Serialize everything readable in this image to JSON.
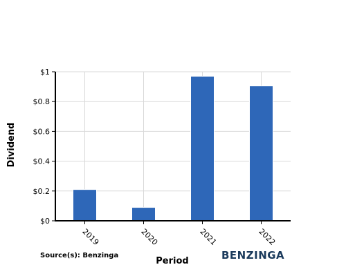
{
  "chart_data": {
    "type": "bar",
    "title": "",
    "xlabel": "Period",
    "ylabel": "Dividend",
    "categories": [
      "2019",
      "2020",
      "2021",
      "2022"
    ],
    "values": [
      0.21,
      0.09,
      0.97,
      0.905
    ],
    "ylim": [
      0,
      1
    ],
    "yticks": [
      0,
      0.2,
      0.4,
      0.6,
      0.8,
      1
    ],
    "ytick_labels": [
      "$0",
      "$0.2",
      "$0.4",
      "$0.6",
      "$0.8",
      "$1"
    ],
    "bar_color": "#2e67b8",
    "grid": true,
    "legend": "none"
  },
  "source_text": "Source(s): Benzinga",
  "brand": "BENZINGA"
}
